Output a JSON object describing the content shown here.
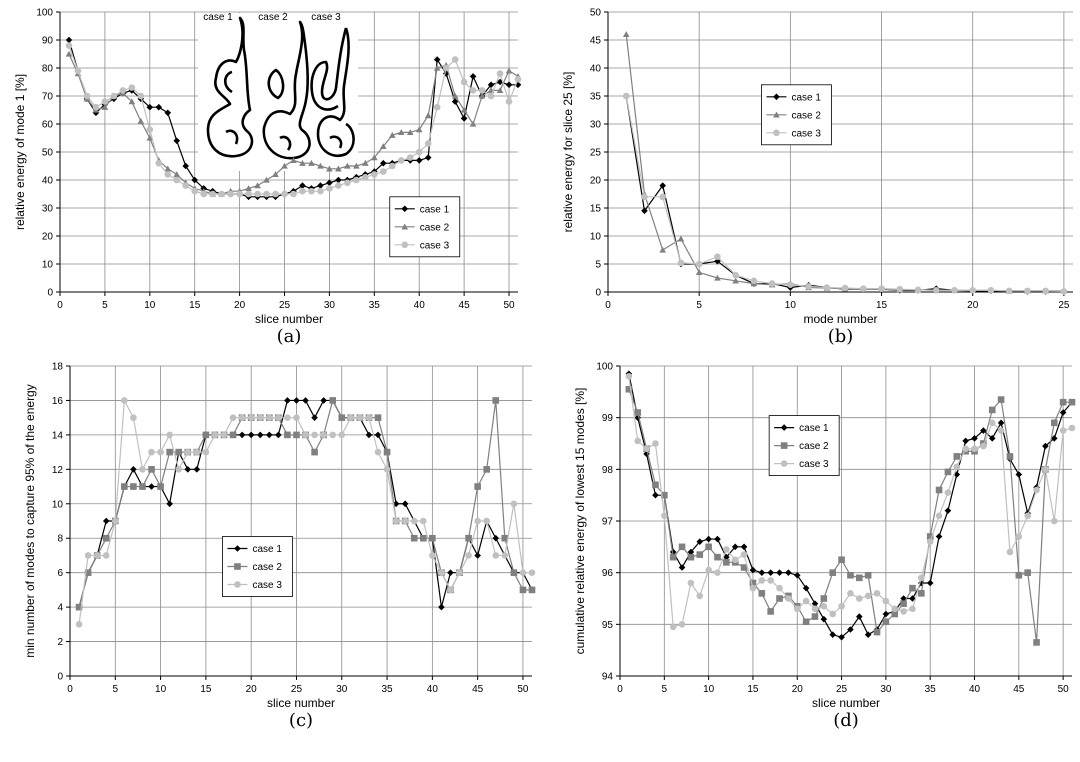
{
  "chart_data": [
    {
      "type": "line",
      "caption": "(a)",
      "x_label": "slice number",
      "y_label": "relative energy of mode 1 [%]",
      "annotations": [
        "case 1",
        "case 2",
        "case 3"
      ],
      "x": [
        1,
        2,
        3,
        4,
        5,
        6,
        7,
        8,
        9,
        10,
        11,
        12,
        13,
        14,
        15,
        16,
        17,
        18,
        19,
        20,
        21,
        22,
        23,
        24,
        25,
        26,
        27,
        28,
        29,
        30,
        31,
        32,
        33,
        34,
        35,
        36,
        37,
        38,
        39,
        40,
        41,
        42,
        43,
        44,
        45,
        46,
        47,
        48,
        49,
        50,
        51
      ],
      "xlim": [
        0,
        51
      ],
      "xticks": [
        0,
        5,
        10,
        15,
        20,
        25,
        30,
        35,
        40,
        45,
        50
      ],
      "ylim": [
        0,
        100
      ],
      "yticks": [
        0,
        10,
        20,
        30,
        40,
        50,
        60,
        70,
        80,
        90,
        100
      ],
      "grid": true,
      "legend": "lower right",
      "series": [
        {
          "name": "case 1",
          "color": "#000000",
          "marker": "diamond",
          "values": [
            90,
            79,
            69,
            64,
            67,
            69,
            71,
            72,
            69,
            66,
            66,
            64,
            54,
            45,
            40,
            37,
            36,
            35,
            35,
            35,
            34,
            34,
            34,
            34,
            35,
            36,
            38,
            37,
            38,
            39,
            40,
            40,
            41,
            42,
            43,
            46,
            46,
            47,
            47,
            47,
            48,
            83,
            78,
            68,
            62,
            77,
            70,
            74,
            75,
            74,
            74
          ]
        },
        {
          "name": "case 2",
          "color": "#808080",
          "marker": "triangle",
          "values": [
            85,
            78,
            69,
            65,
            66,
            70,
            71,
            68,
            61,
            55,
            47,
            44,
            42,
            39,
            37,
            36,
            35,
            35,
            36,
            36,
            37,
            38,
            40,
            42,
            45,
            47,
            46,
            46,
            45,
            44,
            44,
            45,
            45,
            46,
            48,
            52,
            56,
            57,
            57,
            58,
            63,
            80,
            81,
            70,
            65,
            60,
            70,
            72,
            72,
            79,
            77
          ]
        },
        {
          "name": "case 3",
          "color": "#c0c0c0",
          "marker": "circle",
          "values": [
            88,
            79,
            70,
            66,
            68,
            70,
            72,
            73,
            70,
            58,
            46,
            42,
            40,
            38,
            36,
            35,
            35,
            35,
            35,
            35,
            35,
            35,
            35,
            35,
            35,
            35,
            36,
            36,
            36,
            37,
            38,
            39,
            40,
            41,
            42,
            43,
            45,
            47,
            48,
            50,
            53,
            66,
            80,
            83,
            75,
            72,
            72,
            70,
            78,
            68,
            76
          ]
        }
      ]
    },
    {
      "type": "line",
      "caption": "(b)",
      "x_label": "mode number",
      "y_label": "relative energy for slice 25 [%]",
      "x": [
        1,
        2,
        3,
        4,
        5,
        6,
        7,
        8,
        9,
        10,
        11,
        12,
        13,
        14,
        15,
        16,
        17,
        18,
        19,
        20,
        21,
        22,
        23,
        24,
        25
      ],
      "xlim": [
        0,
        25.5
      ],
      "xticks": [
        0,
        5,
        10,
        15,
        20,
        25
      ],
      "ylim": [
        0,
        50
      ],
      "yticks": [
        0,
        5,
        10,
        15,
        20,
        25,
        30,
        35,
        40,
        45,
        50
      ],
      "grid": true,
      "legend": "upper center",
      "series": [
        {
          "name": "case 1",
          "color": "#000000",
          "marker": "diamond",
          "values": [
            35,
            14.5,
            19,
            5,
            5,
            5.5,
            3,
            1.5,
            1.5,
            0.8,
            1.2,
            0.8,
            0.5,
            0.5,
            0.5,
            0.3,
            0.3,
            0.6,
            0.3,
            0.2,
            0.2,
            0.2,
            0.1,
            0.1,
            0.1
          ]
        },
        {
          "name": "case 2",
          "color": "#808080",
          "marker": "triangle",
          "values": [
            46,
            17.5,
            7.5,
            9.5,
            3.5,
            2.5,
            2,
            1.5,
            1.3,
            1.5,
            0.8,
            0.7,
            0.6,
            0.5,
            0.5,
            0.4,
            0.4,
            0.3,
            0.3,
            0.3,
            0.3,
            0.2,
            0.2,
            0.2,
            0.2
          ]
        },
        {
          "name": "case 3",
          "color": "#c0c0c0",
          "marker": "circle",
          "values": [
            35,
            17,
            17,
            5.2,
            5,
            6.3,
            3,
            2,
            1.5,
            1.3,
            1,
            0.8,
            0.7,
            0.6,
            0.6,
            0.5,
            0.4,
            0.3,
            0.3,
            0.3,
            0.3,
            0.2,
            0.2,
            0.2,
            0.1
          ]
        }
      ]
    },
    {
      "type": "line",
      "caption": "(c)",
      "x_label": "slice number",
      "y_label": "min number of modes to capture 95% of the energy",
      "x": [
        1,
        2,
        3,
        4,
        5,
        6,
        7,
        8,
        9,
        10,
        11,
        12,
        13,
        14,
        15,
        16,
        17,
        18,
        19,
        20,
        21,
        22,
        23,
        24,
        25,
        26,
        27,
        28,
        29,
        30,
        31,
        32,
        33,
        34,
        35,
        36,
        37,
        38,
        39,
        40,
        41,
        42,
        43,
        44,
        45,
        46,
        47,
        48,
        49,
        50,
        51
      ],
      "xlim": [
        0,
        51
      ],
      "xticks": [
        0,
        5,
        10,
        15,
        20,
        25,
        30,
        35,
        40,
        45,
        50
      ],
      "ylim": [
        0,
        18
      ],
      "yticks": [
        0,
        2,
        4,
        6,
        8,
        10,
        12,
        14,
        16,
        18
      ],
      "grid": true,
      "legend": "lower center",
      "series": [
        {
          "name": "case 1",
          "color": "#000000",
          "marker": "diamond",
          "values": [
            4,
            6,
            7,
            9,
            9,
            11,
            12,
            11,
            11,
            11,
            10,
            13,
            12,
            12,
            14,
            14,
            14,
            14,
            14,
            14,
            14,
            14,
            14,
            16,
            16,
            16,
            15,
            16,
            16,
            15,
            15,
            15,
            14,
            14,
            13,
            10,
            10,
            9,
            8,
            8,
            4,
            6,
            6,
            8,
            7,
            9,
            8,
            7,
            6,
            6,
            5
          ]
        },
        {
          "name": "case 2",
          "color": "#808080",
          "marker": "square",
          "values": [
            4,
            6,
            7,
            8,
            9,
            11,
            11,
            11,
            12,
            11,
            13,
            13,
            13,
            13,
            14,
            14,
            14,
            14,
            15,
            15,
            15,
            15,
            15,
            14,
            14,
            14,
            13,
            14,
            16,
            15,
            15,
            15,
            15,
            15,
            13,
            9,
            9,
            8,
            8,
            8,
            6,
            5,
            6,
            8,
            11,
            12,
            16,
            8,
            6,
            5,
            5
          ]
        },
        {
          "name": "case 3",
          "color": "#c0c0c0",
          "marker": "circle",
          "values": [
            3,
            7,
            7,
            7,
            9,
            16,
            15,
            12,
            13,
            13,
            14,
            12,
            13,
            13,
            13,
            14,
            14,
            15,
            15,
            15,
            15,
            15,
            15,
            15,
            15,
            14,
            14,
            14,
            14,
            14,
            15,
            15,
            15,
            13,
            12,
            9,
            9,
            9,
            9,
            7,
            6,
            5,
            6,
            7,
            9,
            9,
            7,
            7,
            10,
            6,
            6
          ]
        }
      ]
    },
    {
      "type": "line",
      "caption": "(d)",
      "x_label": "slice number",
      "y_label": "cumulative relative energy of lowest 15 modes [%]",
      "x": [
        1,
        2,
        3,
        4,
        5,
        6,
        7,
        8,
        9,
        10,
        11,
        12,
        13,
        14,
        15,
        16,
        17,
        18,
        19,
        20,
        21,
        22,
        23,
        24,
        25,
        26,
        27,
        28,
        29,
        30,
        31,
        32,
        33,
        34,
        35,
        36,
        37,
        38,
        39,
        40,
        41,
        42,
        43,
        44,
        45,
        46,
        47,
        48,
        49,
        50,
        51
      ],
      "xlim": [
        0,
        51
      ],
      "xticks": [
        0,
        5,
        10,
        15,
        20,
        25,
        30,
        35,
        40,
        45,
        50
      ],
      "ylim": [
        94,
        100
      ],
      "yticks": [
        94,
        95,
        96,
        97,
        98,
        99,
        100
      ],
      "grid": true,
      "legend": "upper left",
      "series": [
        {
          "name": "case 1",
          "color": "#000000",
          "marker": "diamond",
          "values": [
            99.85,
            99.0,
            98.3,
            97.5,
            97.5,
            96.4,
            96.1,
            96.4,
            96.6,
            96.65,
            96.65,
            96.3,
            96.5,
            96.5,
            96.05,
            96.0,
            96.0,
            96.0,
            96.0,
            95.95,
            95.7,
            95.4,
            95.1,
            94.8,
            94.75,
            94.9,
            95.15,
            94.8,
            94.9,
            95.2,
            95.25,
            95.5,
            95.5,
            95.8,
            95.8,
            96.7,
            97.2,
            97.9,
            98.55,
            98.6,
            98.75,
            98.6,
            98.9,
            98.2,
            97.9,
            97.15,
            97.65,
            98.45,
            98.6,
            99.1,
            99.3
          ]
        },
        {
          "name": "case 2",
          "color": "#808080",
          "marker": "square",
          "values": [
            99.55,
            99.1,
            98.4,
            97.7,
            97.5,
            96.3,
            96.5,
            96.3,
            96.35,
            96.5,
            96.3,
            96.2,
            96.2,
            96.1,
            95.8,
            95.6,
            95.25,
            95.5,
            95.55,
            95.35,
            95.05,
            95.15,
            95.5,
            96.0,
            96.25,
            95.95,
            95.9,
            95.95,
            94.85,
            95.05,
            95.2,
            95.4,
            95.7,
            95.6,
            96.7,
            97.6,
            97.95,
            98.25,
            98.35,
            98.35,
            98.5,
            99.15,
            99.35,
            98.25,
            95.95,
            96.0,
            94.65,
            98.0,
            98.9,
            99.3,
            99.3
          ]
        },
        {
          "name": "case 3",
          "color": "#c0c0c0",
          "marker": "circle",
          "values": [
            99.8,
            98.55,
            98.4,
            98.5,
            97.1,
            94.95,
            95.0,
            95.8,
            95.55,
            96.05,
            96.0,
            96.45,
            96.25,
            96.35,
            95.7,
            95.85,
            95.85,
            95.7,
            95.5,
            95.3,
            95.45,
            95.3,
            95.35,
            95.2,
            95.35,
            95.6,
            95.5,
            95.55,
            95.6,
            95.45,
            95.3,
            95.25,
            95.3,
            95.9,
            96.6,
            97.1,
            97.55,
            98.05,
            98.4,
            98.4,
            98.45,
            98.9,
            98.75,
            96.4,
            96.7,
            97.1,
            97.6,
            98.0,
            97.0,
            98.75,
            98.8
          ]
        }
      ]
    }
  ]
}
